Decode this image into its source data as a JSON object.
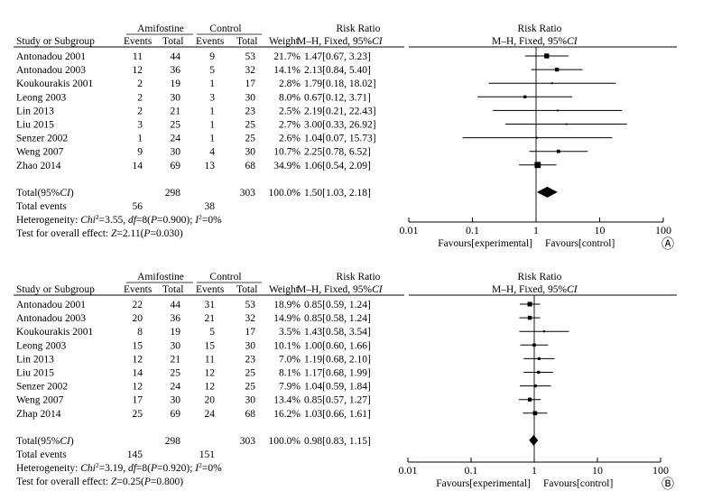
{
  "chart_data": [
    {
      "type": "forest",
      "panel_label": "Ⓐ",
      "headers": {
        "study": "Study or Subgroup",
        "exp_group": "Amifostine",
        "ctrl_group": "Control",
        "events": "Events",
        "total": "Total",
        "weight": "Weight",
        "rr_title": "Risk Ratio",
        "rr_method_prefix": "M–H, Fixed, 95%",
        "rr_method_ci": "CI",
        "plot_title": "Risk Ratio",
        "plot_method_prefix": "M–H, Fixed, 95%",
        "plot_method_ci": "CI"
      },
      "studies": [
        {
          "name": "Antonadou 2001",
          "exp_events": "11",
          "exp_total": "44",
          "ctrl_events": "9",
          "ctrl_total": "53",
          "weight": "21.7%",
          "rr_text": "1.47[0.67, 3.23]",
          "rr": 1.47,
          "lo": 0.67,
          "hi": 3.23
        },
        {
          "name": "Antonadou 2003",
          "exp_events": "12",
          "exp_total": "36",
          "ctrl_events": "5",
          "ctrl_total": "32",
          "weight": "14.1%",
          "rr_text": "2.13[0.84, 5.40]",
          "rr": 2.13,
          "lo": 0.84,
          "hi": 5.4
        },
        {
          "name": "Koukourakis 2001",
          "exp_events": "2",
          "exp_total": "19",
          "ctrl_events": "1",
          "ctrl_total": "17",
          "weight": "2.8%",
          "rr_text": "1.79[0.18, 18.02]",
          "rr": 1.79,
          "lo": 0.18,
          "hi": 18.02
        },
        {
          "name": "Leong 2003",
          "exp_events": "2",
          "exp_total": "30",
          "ctrl_events": "3",
          "ctrl_total": "30",
          "weight": "8.0%",
          "rr_text": "0.67[0.12, 3.71]",
          "rr": 0.67,
          "lo": 0.12,
          "hi": 3.71
        },
        {
          "name": "Lin 2013",
          "exp_events": "2",
          "exp_total": "21",
          "ctrl_events": "1",
          "ctrl_total": "23",
          "weight": "2.5%",
          "rr_text": "2.19[0.21, 22.43]",
          "rr": 2.19,
          "lo": 0.21,
          "hi": 22.43
        },
        {
          "name": "Liu 2015",
          "exp_events": "3",
          "exp_total": "25",
          "ctrl_events": "1",
          "ctrl_total": "25",
          "weight": "2.7%",
          "rr_text": "3.00[0.33, 26.92]",
          "rr": 3.0,
          "lo": 0.33,
          "hi": 26.92
        },
        {
          "name": "Senzer 2002",
          "exp_events": "1",
          "exp_total": "24",
          "ctrl_events": "1",
          "ctrl_total": "25",
          "weight": "2.6%",
          "rr_text": "1.04[0.07, 15.73]",
          "rr": 1.04,
          "lo": 0.07,
          "hi": 15.73
        },
        {
          "name": "Weng 2007",
          "exp_events": "9",
          "exp_total": "30",
          "ctrl_events": "4",
          "ctrl_total": "30",
          "weight": "10.7%",
          "rr_text": "2.25[0.78, 6.52]",
          "rr": 2.25,
          "lo": 0.78,
          "hi": 6.52
        },
        {
          "name": "Zhao 2014",
          "exp_events": "14",
          "exp_total": "69",
          "ctrl_events": "13",
          "ctrl_total": "68",
          "weight": "34.9%",
          "rr_text": "1.06[0.54, 2.09]",
          "rr": 1.06,
          "lo": 0.54,
          "hi": 2.09
        }
      ],
      "total": {
        "label_prefix": "Total(95%",
        "label_ci": "CI",
        "label_suffix": ")",
        "exp_total": "298",
        "ctrl_total": "303",
        "weight": "100.0%",
        "rr_text": "1.50[1.03, 2.18]",
        "rr": 1.5,
        "lo": 1.03,
        "hi": 2.18
      },
      "total_events": {
        "label": "Total events",
        "exp": "56",
        "ctrl": "38"
      },
      "heterogeneity": {
        "prefix": "Heterogeneity: ",
        "chi_label": "Chi",
        "chi_value": "=3.55, ",
        "df_label": "df",
        "df_value": "=8(",
        "p_label": "P",
        "p_value": "=0.900); ",
        "i_label": "I",
        "i_value": "=0%"
      },
      "overall": {
        "prefix": "Test for overall effect: ",
        "z_label": "Z",
        "z_value": "=2.11(",
        "p_label": "P",
        "p_value": "=0.030)"
      },
      "axis": {
        "ticks": [
          0.01,
          0.1,
          1,
          10,
          100
        ],
        "tick_labels": [
          "0.01",
          "0.1",
          "1",
          "10",
          "100"
        ],
        "xlim": [
          0.01,
          100
        ],
        "scale": "log"
      },
      "favours_left": "Favours[experimental]",
      "favours_right": "Favours[control]"
    },
    {
      "type": "forest",
      "panel_label": "Ⓑ",
      "headers": {
        "study": "Study or Subgroup",
        "exp_group": "Amifostine",
        "ctrl_group": "Control",
        "events": "Events",
        "total": "Total",
        "weight": "Weight",
        "rr_title": "Risk Ratio",
        "rr_method_prefix": "M–H, Fixed, 95%",
        "rr_method_ci": "CI",
        "plot_title": "Risk Ratio",
        "plot_method_prefix": "M–H, Fixed, 95%",
        "plot_method_ci": "CI"
      },
      "studies": [
        {
          "name": "Antonadou 2001",
          "exp_events": "22",
          "exp_total": "44",
          "ctrl_events": "31",
          "ctrl_total": "53",
          "weight": "18.9%",
          "rr_text": "0.85[0.59, 1.24]",
          "rr": 0.85,
          "lo": 0.59,
          "hi": 1.24
        },
        {
          "name": "Antonadou 2003",
          "exp_events": "20",
          "exp_total": "36",
          "ctrl_events": "21",
          "ctrl_total": "32",
          "weight": "14.9%",
          "rr_text": "0.85[0.58, 1.24]",
          "rr": 0.85,
          "lo": 0.58,
          "hi": 1.24
        },
        {
          "name": "Koukourakis 2001",
          "exp_events": "8",
          "exp_total": "19",
          "ctrl_events": "5",
          "ctrl_total": "17",
          "weight": "3.5%",
          "rr_text": "1.43[0.58, 3.54]",
          "rr": 1.43,
          "lo": 0.58,
          "hi": 3.54
        },
        {
          "name": "Leong 2003",
          "exp_events": "15",
          "exp_total": "30",
          "ctrl_events": "15",
          "ctrl_total": "30",
          "weight": "10.1%",
          "rr_text": "1.00[0.60, 1.66]",
          "rr": 1.0,
          "lo": 0.6,
          "hi": 1.66
        },
        {
          "name": "Lin 2013",
          "exp_events": "12",
          "exp_total": "21",
          "ctrl_events": "11",
          "ctrl_total": "23",
          "weight": "7.0%",
          "rr_text": "1.19[0.68, 2.10]",
          "rr": 1.19,
          "lo": 0.68,
          "hi": 2.1
        },
        {
          "name": "Liu 2015",
          "exp_events": "14",
          "exp_total": "25",
          "ctrl_events": "12",
          "ctrl_total": "25",
          "weight": "8.1%",
          "rr_text": "1.17[0.68, 1.99]",
          "rr": 1.17,
          "lo": 0.68,
          "hi": 1.99
        },
        {
          "name": "Senzer 2002",
          "exp_events": "12",
          "exp_total": "24",
          "ctrl_events": "12",
          "ctrl_total": "25",
          "weight": "7.9%",
          "rr_text": "1.04[0.59, 1.84]",
          "rr": 1.04,
          "lo": 0.59,
          "hi": 1.84
        },
        {
          "name": "Weng 2007",
          "exp_events": "17",
          "exp_total": "30",
          "ctrl_events": "20",
          "ctrl_total": "30",
          "weight": "13.4%",
          "rr_text": "0.85[0.57, 1.27]",
          "rr": 0.85,
          "lo": 0.57,
          "hi": 1.27
        },
        {
          "name": "Zhap 2014",
          "exp_events": "25",
          "exp_total": "69",
          "ctrl_events": "24",
          "ctrl_total": "68",
          "weight": "16.2%",
          "rr_text": "1.03[0.66, 1.61]",
          "rr": 1.03,
          "lo": 0.66,
          "hi": 1.61
        }
      ],
      "total": {
        "label_prefix": "Total(95%",
        "label_ci": "CI",
        "label_suffix": ")",
        "exp_total": "298",
        "ctrl_total": "303",
        "weight": "100.0%",
        "rr_text": "0.98[0.83, 1.15]",
        "rr": 0.98,
        "lo": 0.83,
        "hi": 1.15
      },
      "total_events": {
        "label": "Total events",
        "exp": "145",
        "ctrl": "151"
      },
      "heterogeneity": {
        "prefix": "Heterogeneity: ",
        "chi_label": "Chi",
        "chi_value": "=3.19, ",
        "df_label": "df",
        "df_value": "=8(",
        "p_label": "P",
        "p_value": "=0.920); ",
        "i_label": "I",
        "i_value": "=0%"
      },
      "overall": {
        "prefix": "Test for overall effect: ",
        "z_label": "Z",
        "z_value": "=0.25(",
        "p_label": "P",
        "p_value": "=0.800)"
      },
      "axis": {
        "ticks": [
          0.01,
          0.1,
          1,
          10,
          100
        ],
        "tick_labels": [
          "0.01",
          "0.1",
          "1",
          "10",
          "100"
        ],
        "xlim": [
          0.01,
          100
        ],
        "scale": "log"
      },
      "favours_left": "Favours[experimental]",
      "favours_right": "Favours[control]"
    }
  ]
}
